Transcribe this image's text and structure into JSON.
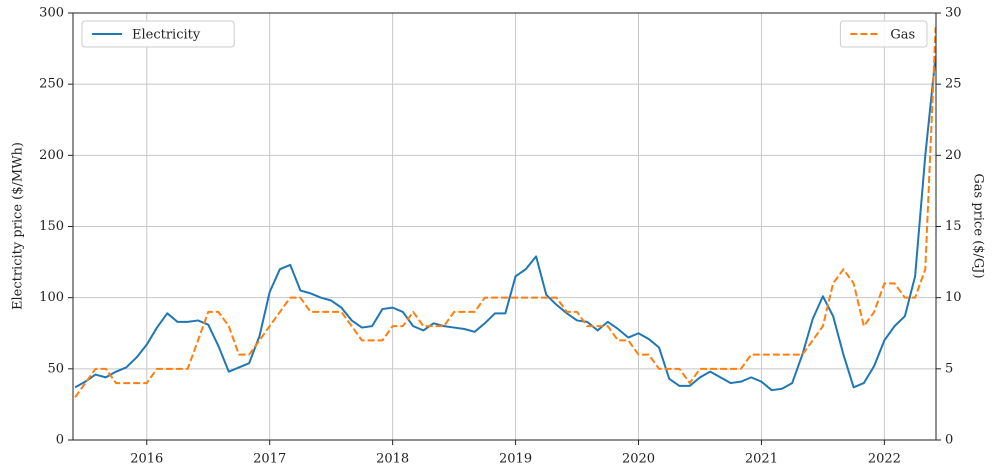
{
  "chart_data": {
    "type": "line",
    "ylabel": "Electricity price ($/MWh)",
    "y2label": "Gas price ($/GJ)",
    "xlim": [
      2015.4,
      2022.42
    ],
    "xticks": [
      2016,
      2017,
      2018,
      2019,
      2020,
      2021,
      2022
    ],
    "ylim": [
      0,
      300
    ],
    "yticks": [
      0,
      50,
      100,
      150,
      200,
      250,
      300
    ],
    "y2lim": [
      0,
      30
    ],
    "y2ticks": [
      0,
      5,
      10,
      15,
      20,
      25,
      30
    ],
    "grid": true,
    "x": [
      2015.417,
      2015.5,
      2015.583,
      2015.667,
      2015.75,
      2015.833,
      2015.917,
      2016,
      2016.083,
      2016.167,
      2016.25,
      2016.333,
      2016.417,
      2016.5,
      2016.583,
      2016.667,
      2016.75,
      2016.833,
      2016.917,
      2017,
      2017.083,
      2017.167,
      2017.25,
      2017.333,
      2017.417,
      2017.5,
      2017.583,
      2017.667,
      2017.75,
      2017.833,
      2017.917,
      2018,
      2018.083,
      2018.167,
      2018.25,
      2018.333,
      2018.417,
      2018.5,
      2018.583,
      2018.667,
      2018.75,
      2018.833,
      2018.917,
      2019,
      2019.083,
      2019.167,
      2019.25,
      2019.333,
      2019.417,
      2019.5,
      2019.583,
      2019.667,
      2019.75,
      2019.833,
      2019.917,
      2020,
      2020.083,
      2020.167,
      2020.25,
      2020.333,
      2020.417,
      2020.5,
      2020.583,
      2020.667,
      2020.75,
      2020.833,
      2020.917,
      2021,
      2021.083,
      2021.167,
      2021.25,
      2021.333,
      2021.417,
      2021.5,
      2021.583,
      2021.667,
      2021.75,
      2021.833,
      2021.917,
      2022,
      2022.083,
      2022.167,
      2022.25,
      2022.333,
      2022.417
    ],
    "series": [
      {
        "name": "Electricity",
        "color": "#1f77b4",
        "linestyle": "solid",
        "axis": "y",
        "legend": "upper left",
        "values": [
          37,
          41,
          46,
          44,
          48,
          51,
          58,
          67,
          79,
          89,
          83,
          83,
          84,
          81,
          66,
          48,
          51,
          54,
          73,
          104,
          120,
          123,
          105,
          103,
          100,
          98,
          93,
          84,
          79,
          80,
          92,
          93,
          90,
          80,
          77,
          82,
          80,
          79,
          78,
          76,
          82,
          89,
          89,
          115,
          120,
          129,
          102,
          95,
          89,
          84,
          83,
          77,
          83,
          78,
          72,
          75,
          71,
          65,
          43,
          38,
          38,
          44,
          48,
          44,
          40,
          41,
          44,
          41,
          35,
          36,
          40,
          60,
          85,
          101,
          87,
          60,
          37,
          40,
          52,
          70,
          80,
          87,
          115,
          200,
          270
        ]
      },
      {
        "name": "Gas",
        "color": "#ff7f0e",
        "linestyle": "dashed",
        "axis": "y2",
        "legend": "upper right",
        "values": [
          3,
          4,
          5,
          5,
          4,
          4,
          4,
          4,
          5,
          5,
          5,
          5,
          7,
          9,
          9,
          8,
          6,
          6,
          7,
          8,
          9,
          10,
          10,
          9,
          9,
          9,
          9,
          8,
          7,
          7,
          7,
          8,
          8,
          9,
          8,
          8,
          8,
          9,
          9,
          9,
          10,
          10,
          10,
          10,
          10,
          10,
          10,
          10,
          9,
          9,
          8,
          8,
          8,
          7,
          7,
          6,
          6,
          5,
          5,
          5,
          4,
          5,
          5,
          5,
          5,
          5,
          6,
          6,
          6,
          6,
          6,
          6,
          7,
          8,
          11,
          12,
          11,
          8,
          9,
          11,
          11,
          10,
          10,
          12,
          29
        ]
      }
    ]
  }
}
